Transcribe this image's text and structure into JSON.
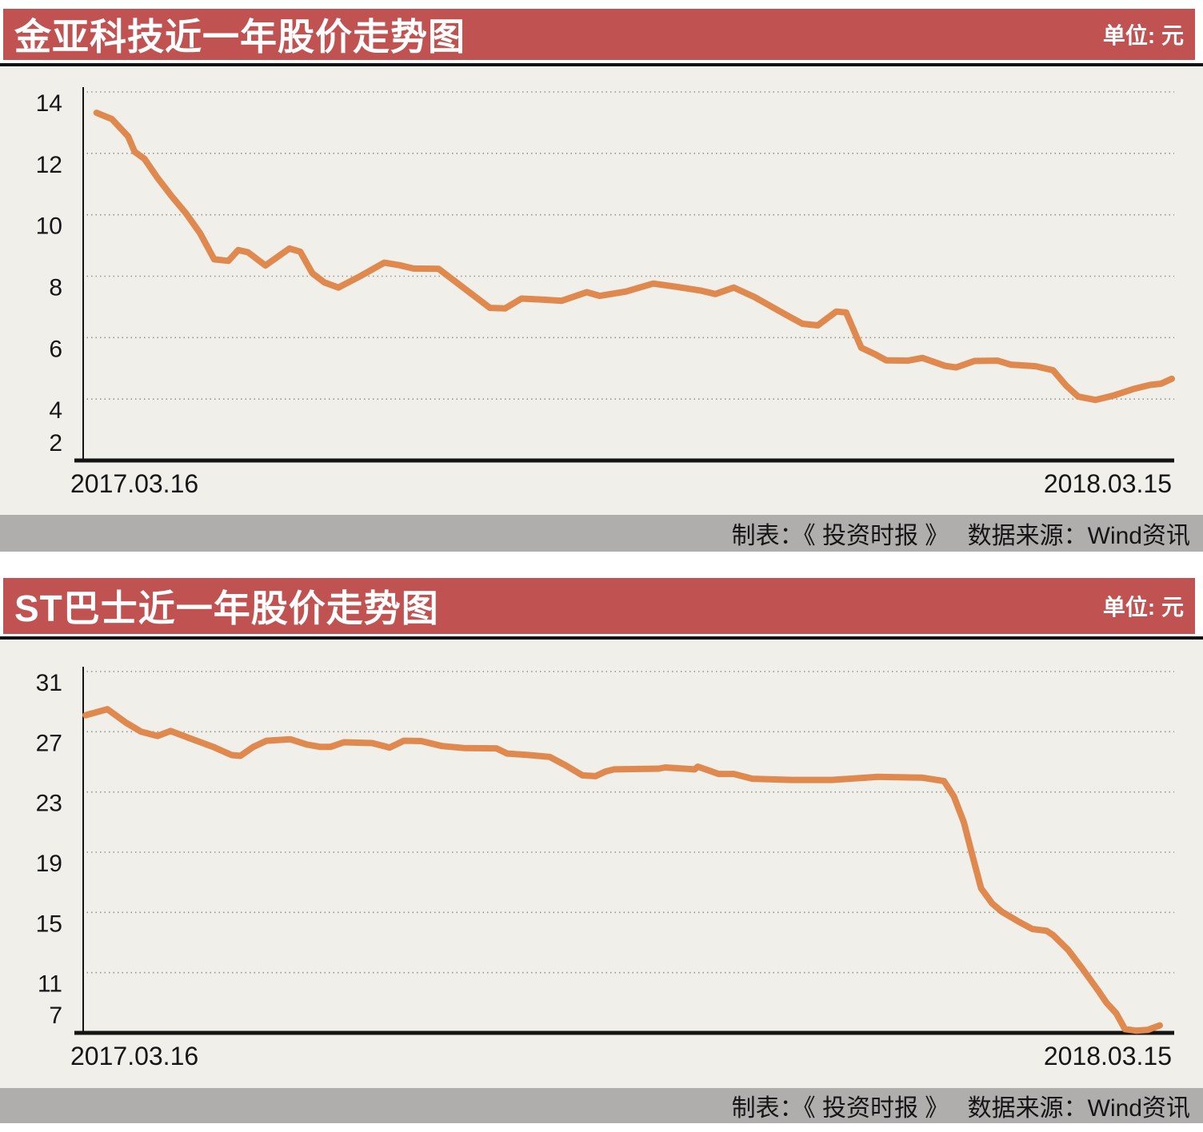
{
  "colors": {
    "header_bg": "#c05351",
    "footer_bg": "#afaeac",
    "panel_bg": "#f1efe9",
    "line_color": "#e0894f",
    "axis_color": "#141414",
    "page_bg": "#ffffff"
  },
  "chart_data": [
    {
      "type": "line",
      "title": "金亚科技近一年股价走势图",
      "unit_label": "单位: 元",
      "source_label": "制表：《 投资时报 》　 数据来源：Wind资讯",
      "x_start_label": "2017.03.16",
      "x_end_label": "2018.03.15",
      "y_ticks": [
        14,
        12,
        10,
        8,
        6,
        4,
        2
      ],
      "ylim": [
        2,
        14
      ],
      "grid": "dotted-horizontal",
      "legend": "none",
      "line_color": "#e0894f",
      "points": [
        [
          0.013,
          13.32
        ],
        [
          0.027,
          13.12
        ],
        [
          0.042,
          12.55
        ],
        [
          0.048,
          12.05
        ],
        [
          0.057,
          11.82
        ],
        [
          0.069,
          11.2
        ],
        [
          0.082,
          10.6
        ],
        [
          0.095,
          10.05
        ],
        [
          0.108,
          9.4
        ],
        [
          0.121,
          8.55
        ],
        [
          0.134,
          8.5
        ],
        [
          0.143,
          8.85
        ],
        [
          0.152,
          8.78
        ],
        [
          0.168,
          8.35
        ],
        [
          0.19,
          8.9
        ],
        [
          0.2,
          8.8
        ],
        [
          0.211,
          8.1
        ],
        [
          0.222,
          7.8
        ],
        [
          0.235,
          7.63
        ],
        [
          0.255,
          8.0
        ],
        [
          0.277,
          8.44
        ],
        [
          0.291,
          8.36
        ],
        [
          0.304,
          8.25
        ],
        [
          0.327,
          8.24
        ],
        [
          0.374,
          6.97
        ],
        [
          0.388,
          6.95
        ],
        [
          0.403,
          7.27
        ],
        [
          0.422,
          7.24
        ],
        [
          0.44,
          7.2
        ],
        [
          0.463,
          7.48
        ],
        [
          0.475,
          7.36
        ],
        [
          0.499,
          7.5
        ],
        [
          0.524,
          7.76
        ],
        [
          0.546,
          7.65
        ],
        [
          0.568,
          7.53
        ],
        [
          0.581,
          7.42
        ],
        [
          0.598,
          7.63
        ],
        [
          0.617,
          7.32
        ],
        [
          0.633,
          7.0
        ],
        [
          0.646,
          6.74
        ],
        [
          0.661,
          6.45
        ],
        [
          0.675,
          6.4
        ],
        [
          0.692,
          6.85
        ],
        [
          0.701,
          6.82
        ],
        [
          0.715,
          5.67
        ],
        [
          0.727,
          5.47
        ],
        [
          0.738,
          5.26
        ],
        [
          0.758,
          5.25
        ],
        [
          0.771,
          5.34
        ],
        [
          0.792,
          5.08
        ],
        [
          0.802,
          5.03
        ],
        [
          0.819,
          5.24
        ],
        [
          0.84,
          5.25
        ],
        [
          0.852,
          5.12
        ],
        [
          0.875,
          5.07
        ],
        [
          0.891,
          4.94
        ],
        [
          0.903,
          4.44
        ],
        [
          0.914,
          4.08
        ],
        [
          0.93,
          3.97
        ],
        [
          0.947,
          4.12
        ],
        [
          0.965,
          4.33
        ],
        [
          0.98,
          4.46
        ],
        [
          0.99,
          4.5
        ],
        [
          1.0,
          4.66
        ]
      ]
    },
    {
      "type": "line",
      "title": "ST巴士近一年股价走势图",
      "unit_label": "单位: 元",
      "source_label": "制表：《 投资时报 》　 数据来源：Wind资讯",
      "x_start_label": "2017.03.16",
      "x_end_label": "2018.03.15",
      "y_ticks": [
        31,
        27,
        23,
        19,
        15,
        11,
        7
      ],
      "ylim": [
        7,
        31
      ],
      "grid": "dotted-horizontal",
      "legend": "none",
      "line_color": "#e0894f",
      "points": [
        [
          0.003,
          28.1
        ],
        [
          0.023,
          28.5
        ],
        [
          0.04,
          27.6
        ],
        [
          0.054,
          27.0
        ],
        [
          0.069,
          26.72
        ],
        [
          0.081,
          27.05
        ],
        [
          0.101,
          26.5
        ],
        [
          0.12,
          26.0
        ],
        [
          0.137,
          25.45
        ],
        [
          0.145,
          25.4
        ],
        [
          0.157,
          26.0
        ],
        [
          0.169,
          26.4
        ],
        [
          0.191,
          26.5
        ],
        [
          0.206,
          26.15
        ],
        [
          0.218,
          26.0
        ],
        [
          0.228,
          26.0
        ],
        [
          0.24,
          26.3
        ],
        [
          0.266,
          26.25
        ],
        [
          0.282,
          25.95
        ],
        [
          0.295,
          26.4
        ],
        [
          0.311,
          26.38
        ],
        [
          0.33,
          26.05
        ],
        [
          0.35,
          25.92
        ],
        [
          0.38,
          25.9
        ],
        [
          0.39,
          25.55
        ],
        [
          0.41,
          25.45
        ],
        [
          0.429,
          25.33
        ],
        [
          0.444,
          24.75
        ],
        [
          0.459,
          24.1
        ],
        [
          0.471,
          24.05
        ],
        [
          0.48,
          24.36
        ],
        [
          0.488,
          24.5
        ],
        [
          0.529,
          24.55
        ],
        [
          0.535,
          24.63
        ],
        [
          0.562,
          24.5
        ],
        [
          0.565,
          24.68
        ],
        [
          0.584,
          24.2
        ],
        [
          0.598,
          24.2
        ],
        [
          0.615,
          23.88
        ],
        [
          0.651,
          23.8
        ],
        [
          0.688,
          23.8
        ],
        [
          0.73,
          24.0
        ],
        [
          0.771,
          23.95
        ],
        [
          0.78,
          23.85
        ],
        [
          0.791,
          23.72
        ],
        [
          0.8,
          22.7
        ],
        [
          0.809,
          21.0
        ],
        [
          0.818,
          18.5
        ],
        [
          0.825,
          16.6
        ],
        [
          0.835,
          15.6
        ],
        [
          0.844,
          15.05
        ],
        [
          0.859,
          14.4
        ],
        [
          0.872,
          13.9
        ],
        [
          0.885,
          13.78
        ],
        [
          0.891,
          13.5
        ],
        [
          0.905,
          12.5
        ],
        [
          0.918,
          11.26
        ],
        [
          0.932,
          9.85
        ],
        [
          0.94,
          9.0
        ],
        [
          0.949,
          8.3
        ],
        [
          0.957,
          7.25
        ],
        [
          0.967,
          7.15
        ],
        [
          0.978,
          7.2
        ],
        [
          0.989,
          7.5
        ]
      ]
    }
  ]
}
